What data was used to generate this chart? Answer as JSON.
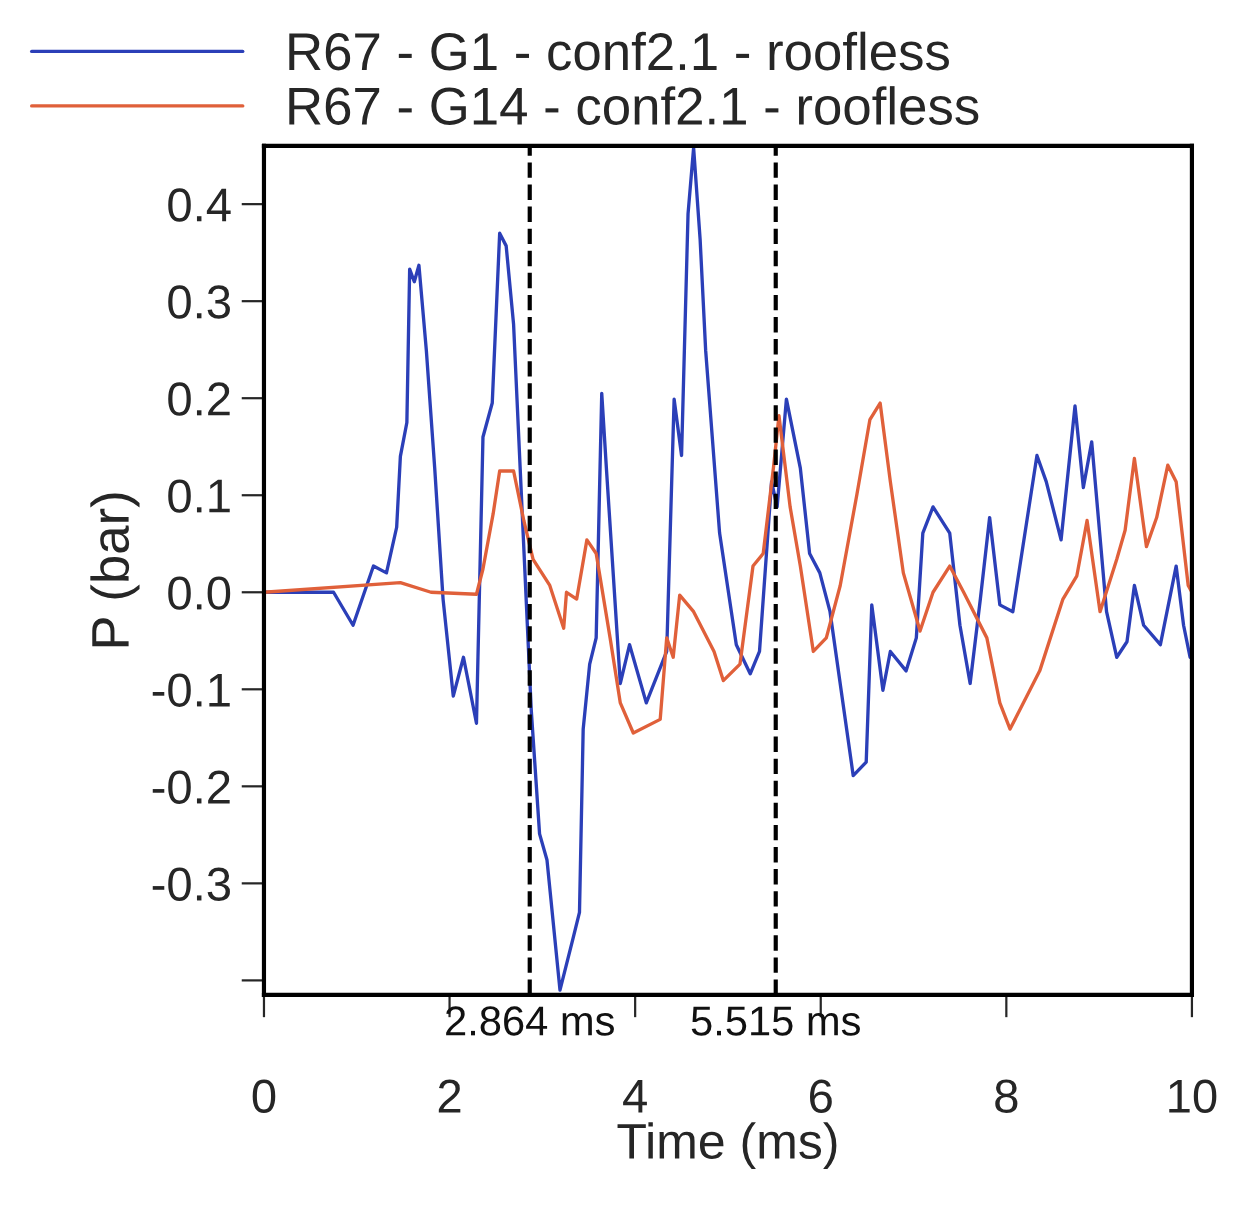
{
  "chart_data": {
    "type": "line",
    "xlabel": "Time (ms)",
    "ylabel": "P (bar)",
    "xlim": [
      0,
      10
    ],
    "xticks": [
      0,
      2,
      4,
      6,
      8,
      10
    ],
    "ylim": [
      -0.415,
      0.46
    ],
    "yticks": [
      {
        "value": -0.4,
        "label": null
      },
      -0.3,
      -0.2,
      -0.1,
      {
        "value": 0,
        "label": "0.0"
      },
      0.1,
      0.2,
      0.3,
      0.4
    ],
    "grid": false,
    "legend": "top left",
    "line_style": "solid",
    "marker": "none",
    "ref_lines": [
      {
        "axis": "x",
        "value": 2.864,
        "label": "2.864 ms",
        "color": "#000000",
        "line_style": "dashed"
      },
      {
        "axis": "x",
        "value": 5.515,
        "label": "5.515 ms",
        "color": "#000000",
        "line_style": "dashed"
      }
    ],
    "series": [
      {
        "name": "R67 - G1 - conf2.1 - roofless",
        "color": "#2b3fb8",
        "x": [
          0,
          0.46,
          0.75,
          0.96,
          1.18,
          1.32,
          1.43,
          1.47,
          1.54,
          1.57,
          1.62,
          1.67,
          1.75,
          1.84,
          1.93,
          2.04,
          2.15,
          2.29,
          2.36,
          2.46,
          2.54,
          2.61,
          2.69,
          2.88,
          2.97,
          3.05,
          3.19,
          3.33,
          3.4,
          3.44,
          3.51,
          3.58,
          3.64,
          3.69,
          3.84,
          3.94,
          4.12,
          4.34,
          4.42,
          4.5,
          4.57,
          4.63,
          4.7,
          4.76,
          4.91,
          5.09,
          5.24,
          5.34,
          5.47,
          5.53,
          5.63,
          5.78,
          5.88,
          5.99,
          6.1,
          6.35,
          6.49,
          6.55,
          6.67,
          6.75,
          6.92,
          7.03,
          7.1,
          7.21,
          7.39,
          7.5,
          7.61,
          7.72,
          7.82,
          7.93,
          8.07,
          8.33,
          8.43,
          8.59,
          8.74,
          8.83,
          8.92,
          9.08,
          9.19,
          9.3,
          9.38,
          9.48,
          9.66,
          9.83,
          9.91,
          9.98
        ],
        "values": [
          0,
          0,
          0,
          -0.034,
          0.027,
          0.02,
          0.067,
          0.14,
          0.175,
          0.333,
          0.32,
          0.337,
          0.249,
          0.128,
          -0.007,
          -0.107,
          -0.067,
          -0.135,
          0.16,
          0.195,
          0.37,
          0.357,
          0.276,
          -0.121,
          -0.249,
          -0.276,
          -0.41,
          -0.357,
          -0.33,
          -0.141,
          -0.074,
          -0.047,
          0.205,
          0.128,
          -0.094,
          -0.054,
          -0.114,
          -0.061,
          0.199,
          0.141,
          0.39,
          0.458,
          0.364,
          0.249,
          0.061,
          -0.054,
          -0.084,
          -0.061,
          0.114,
          0.088,
          0.199,
          0.128,
          0.04,
          0.02,
          -0.02,
          -0.189,
          -0.175,
          -0.013,
          -0.101,
          -0.061,
          -0.081,
          -0.047,
          0.061,
          0.088,
          0.061,
          -0.034,
          -0.094,
          -0.007,
          0.077,
          -0.013,
          -0.02,
          0.141,
          0.114,
          0.054,
          0.192,
          0.108,
          0.155,
          -0.02,
          -0.067,
          -0.051,
          0.007,
          -0.034,
          -0.054,
          0.027,
          -0.034,
          -0.067
        ]
      },
      {
        "name": "R67 - G14 - conf2.1 - roofless",
        "color": "#e0603a",
        "x": [
          0,
          1.47,
          1.8,
          2.29,
          2.36,
          2.47,
          2.54,
          2.69,
          2.8,
          2.9,
          3.08,
          3.23,
          3.26,
          3.37,
          3.48,
          3.58,
          3.73,
          3.84,
          3.98,
          4.27,
          4.34,
          4.41,
          4.48,
          4.63,
          4.85,
          4.95,
          5.13,
          5.27,
          5.38,
          5.49,
          5.55,
          5.67,
          5.78,
          5.92,
          6.06,
          6.21,
          6.39,
          6.53,
          6.64,
          6.75,
          6.89,
          7.07,
          7.21,
          7.39,
          7.54,
          7.79,
          7.93,
          8.04,
          8.36,
          8.61,
          8.76,
          8.87,
          9.01,
          9.19,
          9.28,
          9.38,
          9.51,
          9.62,
          9.74,
          9.83,
          9.96,
          10
        ],
        "values": [
          0,
          0.01,
          0,
          -0.002,
          0.024,
          0.081,
          0.125,
          0.125,
          0.074,
          0.034,
          0.007,
          -0.037,
          0,
          -0.007,
          0.054,
          0.04,
          -0.047,
          -0.114,
          -0.145,
          -0.131,
          -0.047,
          -0.067,
          -0.003,
          -0.02,
          -0.061,
          -0.091,
          -0.074,
          0.027,
          0.04,
          0.128,
          0.182,
          0.088,
          0.027,
          -0.061,
          -0.047,
          0.007,
          0.101,
          0.178,
          0.195,
          0.114,
          0.02,
          -0.04,
          0,
          0.027,
          0,
          -0.047,
          -0.114,
          -0.141,
          -0.081,
          -0.007,
          0.017,
          0.074,
          -0.02,
          0.034,
          0.064,
          0.138,
          0.047,
          0.077,
          0.131,
          0.114,
          0.007,
          0
        ]
      }
    ]
  }
}
